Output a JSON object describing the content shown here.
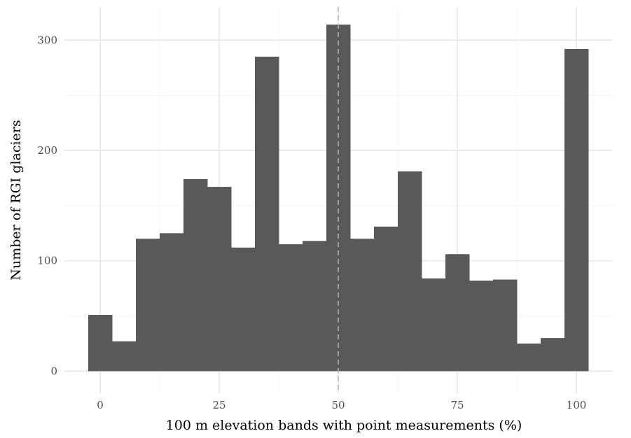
{
  "chart_data": {
    "type": "bar",
    "title": "",
    "xlabel": "100 m elevation bands with point measurements (%)",
    "ylabel": "Number of RGI glaciers",
    "bin_width": 5,
    "bins": [
      {
        "x": 0,
        "count": 51
      },
      {
        "x": 5,
        "count": 27
      },
      {
        "x": 10,
        "count": 120
      },
      {
        "x": 15,
        "count": 125
      },
      {
        "x": 20,
        "count": 174
      },
      {
        "x": 25,
        "count": 167
      },
      {
        "x": 30,
        "count": 112
      },
      {
        "x": 35,
        "count": 285
      },
      {
        "x": 40,
        "count": 115
      },
      {
        "x": 45,
        "count": 118
      },
      {
        "x": 50,
        "count": 314
      },
      {
        "x": 55,
        "count": 120
      },
      {
        "x": 60,
        "count": 131
      },
      {
        "x": 65,
        "count": 181
      },
      {
        "x": 70,
        "count": 84
      },
      {
        "x": 75,
        "count": 106
      },
      {
        "x": 80,
        "count": 82
      },
      {
        "x": 85,
        "count": 83
      },
      {
        "x": 90,
        "count": 25
      },
      {
        "x": 95,
        "count": 30
      },
      {
        "x": 100,
        "count": 292
      }
    ],
    "xlim": [
      -2.5,
      102.5
    ],
    "ylim": [
      0,
      330
    ],
    "x_ticks": [
      0,
      25,
      50,
      75,
      100
    ],
    "x_tick_labels": [
      "0",
      "25",
      "50",
      "75",
      "100"
    ],
    "y_ticks": [
      0,
      100,
      200,
      300
    ],
    "y_tick_labels": [
      "0",
      "100",
      "200",
      "300"
    ],
    "reference_line": {
      "x": 50,
      "style": "dashed",
      "color": "#b3b3b3"
    },
    "bar_color": "#595959",
    "grid": true,
    "legend": "none"
  }
}
